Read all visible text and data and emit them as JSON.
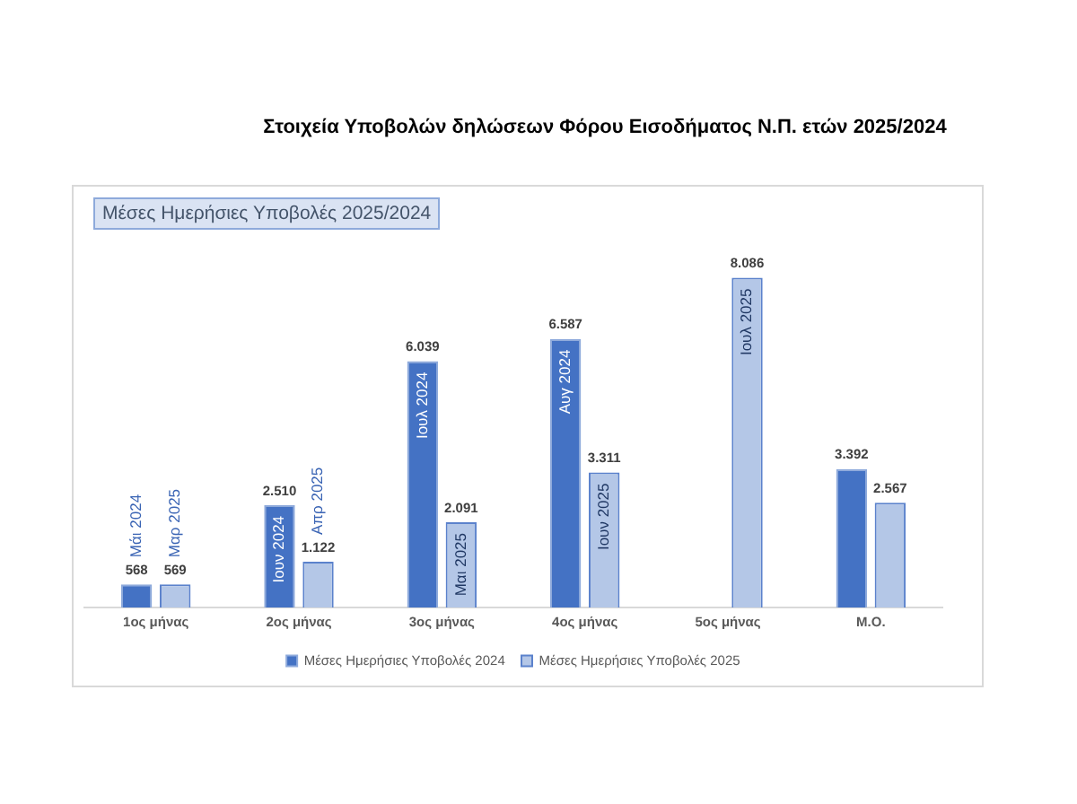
{
  "chart_data": {
    "type": "bar",
    "title": "Στοιχεία Υποβολών δηλώσεων Φόρου Εισοδήματος Ν.Π. ετών 2025/2024",
    "subtitle": "Μέσες Ημερήσιες Υποβολές 2025/2024",
    "categories": [
      "1ος μήνας",
      "2ος μήνας",
      "3ος μήνας",
      "4ος μήνας",
      "5ος μήνας",
      "Μ.Ο."
    ],
    "series": [
      {
        "name": "Μέσες Ημερήσιες Υποβολές 2024",
        "color": "#4472c4",
        "values": [
          568,
          2510,
          6039,
          6587,
          null,
          3392
        ],
        "value_labels": [
          "568",
          "2.510",
          "6.039",
          "6.587",
          null,
          "3.392"
        ]
      },
      {
        "name": "Μέσες Ημερήσιες Υποβολές 2025",
        "color": "#b4c7e7",
        "values": [
          569,
          1122,
          2091,
          3311,
          8086,
          2567
        ],
        "value_labels": [
          "569",
          "1.122",
          "2.091",
          "3.311",
          "8.086",
          "2.567"
        ]
      }
    ],
    "annotations": [
      {
        "text": "Μάι 2024",
        "x": "1ος μήνας",
        "y": 568
      },
      {
        "text": "Μαρ 2025",
        "x": "1ος μήνας",
        "y": 569
      },
      {
        "text": "Ιουν 2024",
        "x": "2ος μήνας",
        "y": 2510
      },
      {
        "text": "Απρ 2025",
        "x": "2ος μήνας",
        "y": 1122
      },
      {
        "text": "Ιουλ 2024",
        "x": "3ος μήνας",
        "y": 6039
      },
      {
        "text": "Μαι 2025",
        "x": "3ος μήνας",
        "y": 2091
      },
      {
        "text": "Αυγ 2024",
        "x": "4ος μήνας",
        "y": 6587
      },
      {
        "text": "Ιουν 2025",
        "x": "4ος μήνας",
        "y": 3311
      },
      {
        "text": "Ιουλ 2025",
        "x": "5ος μήνας",
        "y": 8086
      }
    ],
    "tick_labels": "x",
    "grid": false,
    "legend": "bottom"
  }
}
